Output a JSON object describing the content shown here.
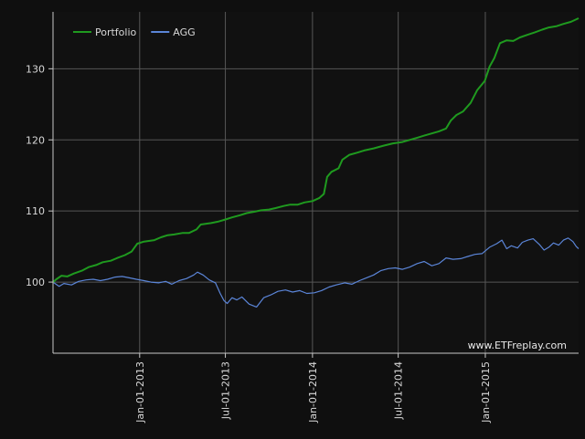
{
  "chart_data": {
    "type": "line",
    "title": "",
    "xlabel": "",
    "ylabel": "",
    "x_range": [
      "2012-07-02",
      "2015-07-17"
    ],
    "ylim": [
      90,
      138
    ],
    "y_ticks": [
      100,
      110,
      120,
      130
    ],
    "y_tick_labels": [
      "100",
      "110",
      "120",
      "130"
    ],
    "x_ticks": [
      "2013-01-01",
      "2013-07-01",
      "2014-01-01",
      "2014-07-01",
      "2015-01-01"
    ],
    "x_tick_labels": [
      "Jan-01-2013",
      "Jul-01-2013",
      "Jan-01-2014",
      "Jul-01-2014",
      "Jan-01-2015"
    ],
    "grid": true,
    "legend_position": "top-left",
    "watermark": "www.ETFreplay.com",
    "series": [
      {
        "name": "Portfolio",
        "color": "#1f9a1f",
        "points": [
          [
            "2012-07-02",
            100.0
          ],
          [
            "2012-07-09",
            100.4
          ],
          [
            "2012-07-20",
            100.9
          ],
          [
            "2012-08-01",
            100.8
          ],
          [
            "2012-08-15",
            101.2
          ],
          [
            "2012-09-01",
            101.6
          ],
          [
            "2012-09-15",
            102.1
          ],
          [
            "2012-10-01",
            102.4
          ],
          [
            "2012-10-15",
            102.8
          ],
          [
            "2012-11-01",
            103.0
          ],
          [
            "2012-11-15",
            103.4
          ],
          [
            "2012-12-01",
            103.8
          ],
          [
            "2012-12-15",
            104.3
          ],
          [
            "2012-12-27",
            105.4
          ],
          [
            "2013-01-10",
            105.7
          ],
          [
            "2013-02-01",
            105.9
          ],
          [
            "2013-02-15",
            106.3
          ],
          [
            "2013-03-01",
            106.6
          ],
          [
            "2013-03-15",
            106.7
          ],
          [
            "2013-04-01",
            106.9
          ],
          [
            "2013-04-15",
            106.9
          ],
          [
            "2013-05-01",
            107.4
          ],
          [
            "2013-05-10",
            108.1
          ],
          [
            "2013-06-01",
            108.3
          ],
          [
            "2013-06-15",
            108.5
          ],
          [
            "2013-07-01",
            108.8
          ],
          [
            "2013-07-15",
            109.1
          ],
          [
            "2013-08-01",
            109.4
          ],
          [
            "2013-08-15",
            109.7
          ],
          [
            "2013-09-01",
            109.9
          ],
          [
            "2013-09-15",
            110.1
          ],
          [
            "2013-10-01",
            110.2
          ],
          [
            "2013-10-15",
            110.4
          ],
          [
            "2013-11-01",
            110.7
          ],
          [
            "2013-11-15",
            110.9
          ],
          [
            "2013-12-01",
            110.9
          ],
          [
            "2013-12-15",
            111.2
          ],
          [
            "2014-01-01",
            111.4
          ],
          [
            "2014-01-15",
            111.8
          ],
          [
            "2014-01-25",
            112.4
          ],
          [
            "2014-02-01",
            114.8
          ],
          [
            "2014-02-10",
            115.5
          ],
          [
            "2014-02-25",
            116.0
          ],
          [
            "2014-03-05",
            117.2
          ],
          [
            "2014-03-20",
            117.9
          ],
          [
            "2014-04-05",
            118.2
          ],
          [
            "2014-04-20",
            118.5
          ],
          [
            "2014-05-10",
            118.8
          ],
          [
            "2014-06-01",
            119.2
          ],
          [
            "2014-06-20",
            119.5
          ],
          [
            "2014-07-10",
            119.7
          ],
          [
            "2014-07-25",
            120.0
          ],
          [
            "2014-08-10",
            120.3
          ],
          [
            "2014-08-25",
            120.6
          ],
          [
            "2014-09-10",
            120.9
          ],
          [
            "2014-09-25",
            121.2
          ],
          [
            "2014-10-10",
            121.6
          ],
          [
            "2014-10-20",
            122.7
          ],
          [
            "2014-11-01",
            123.5
          ],
          [
            "2014-11-15",
            124.0
          ],
          [
            "2014-12-01",
            125.2
          ],
          [
            "2014-12-15",
            127.0
          ],
          [
            "2014-12-31",
            128.3
          ],
          [
            "2015-01-10",
            130.3
          ],
          [
            "2015-01-20",
            131.5
          ],
          [
            "2015-02-01",
            133.6
          ],
          [
            "2015-02-15",
            134.0
          ],
          [
            "2015-03-01",
            133.9
          ],
          [
            "2015-03-15",
            134.4
          ],
          [
            "2015-04-01",
            134.8
          ],
          [
            "2015-04-15",
            135.1
          ],
          [
            "2015-05-01",
            135.5
          ],
          [
            "2015-05-15",
            135.8
          ],
          [
            "2015-06-01",
            136.0
          ],
          [
            "2015-06-15",
            136.3
          ],
          [
            "2015-07-01",
            136.6
          ],
          [
            "2015-07-17",
            137.1
          ]
        ]
      },
      {
        "name": "AGG",
        "color": "#5b85d8",
        "points": [
          [
            "2012-07-02",
            100.0
          ],
          [
            "2012-07-15",
            99.4
          ],
          [
            "2012-07-25",
            99.8
          ],
          [
            "2012-08-10",
            99.6
          ],
          [
            "2012-08-25",
            100.1
          ],
          [
            "2012-09-10",
            100.3
          ],
          [
            "2012-09-25",
            100.4
          ],
          [
            "2012-10-10",
            100.2
          ],
          [
            "2012-10-25",
            100.4
          ],
          [
            "2012-11-10",
            100.7
          ],
          [
            "2012-11-25",
            100.8
          ],
          [
            "2012-12-10",
            100.6
          ],
          [
            "2012-12-25",
            100.4
          ],
          [
            "2013-01-10",
            100.2
          ],
          [
            "2013-01-25",
            100.0
          ],
          [
            "2013-02-10",
            99.9
          ],
          [
            "2013-02-25",
            100.1
          ],
          [
            "2013-03-10",
            99.7
          ],
          [
            "2013-03-25",
            100.2
          ],
          [
            "2013-04-10",
            100.5
          ],
          [
            "2013-04-25",
            101.0
          ],
          [
            "2013-05-03",
            101.4
          ],
          [
            "2013-05-15",
            101.0
          ],
          [
            "2013-05-28",
            100.3
          ],
          [
            "2013-06-10",
            99.9
          ],
          [
            "2013-06-20",
            98.4
          ],
          [
            "2013-06-28",
            97.4
          ],
          [
            "2013-07-05",
            97.0
          ],
          [
            "2013-07-15",
            97.8
          ],
          [
            "2013-07-25",
            97.5
          ],
          [
            "2013-08-05",
            97.9
          ],
          [
            "2013-08-20",
            96.9
          ],
          [
            "2013-09-05",
            96.5
          ],
          [
            "2013-09-20",
            97.8
          ],
          [
            "2013-10-05",
            98.2
          ],
          [
            "2013-10-20",
            98.7
          ],
          [
            "2013-11-05",
            98.9
          ],
          [
            "2013-11-20",
            98.6
          ],
          [
            "2013-12-05",
            98.8
          ],
          [
            "2013-12-20",
            98.4
          ],
          [
            "2014-01-05",
            98.5
          ],
          [
            "2014-01-20",
            98.8
          ],
          [
            "2014-02-05",
            99.3
          ],
          [
            "2014-02-20",
            99.6
          ],
          [
            "2014-03-10",
            99.9
          ],
          [
            "2014-03-25",
            99.7
          ],
          [
            "2014-04-10",
            100.2
          ],
          [
            "2014-04-25",
            100.6
          ],
          [
            "2014-05-10",
            101.0
          ],
          [
            "2014-05-25",
            101.6
          ],
          [
            "2014-06-10",
            101.9
          ],
          [
            "2014-06-25",
            102.0
          ],
          [
            "2014-07-10",
            101.8
          ],
          [
            "2014-07-25",
            102.1
          ],
          [
            "2014-08-10",
            102.6
          ],
          [
            "2014-08-25",
            102.9
          ],
          [
            "2014-09-10",
            102.3
          ],
          [
            "2014-09-25",
            102.6
          ],
          [
            "2014-10-10",
            103.4
          ],
          [
            "2014-10-25",
            103.2
          ],
          [
            "2014-11-10",
            103.3
          ],
          [
            "2014-11-25",
            103.6
          ],
          [
            "2014-12-10",
            103.9
          ],
          [
            "2014-12-25",
            104.0
          ],
          [
            "2015-01-10",
            104.9
          ],
          [
            "2015-01-25",
            105.4
          ],
          [
            "2015-02-05",
            105.9
          ],
          [
            "2015-02-15",
            104.7
          ],
          [
            "2015-02-25",
            105.1
          ],
          [
            "2015-03-10",
            104.8
          ],
          [
            "2015-03-20",
            105.6
          ],
          [
            "2015-04-01",
            105.9
          ],
          [
            "2015-04-12",
            106.1
          ],
          [
            "2015-04-25",
            105.3
          ],
          [
            "2015-05-05",
            104.5
          ],
          [
            "2015-05-15",
            104.9
          ],
          [
            "2015-05-25",
            105.5
          ],
          [
            "2015-06-05",
            105.2
          ],
          [
            "2015-06-15",
            105.9
          ],
          [
            "2015-06-25",
            106.2
          ],
          [
            "2015-07-05",
            105.7
          ],
          [
            "2015-07-12",
            105.0
          ],
          [
            "2015-07-17",
            104.7
          ]
        ]
      }
    ]
  }
}
